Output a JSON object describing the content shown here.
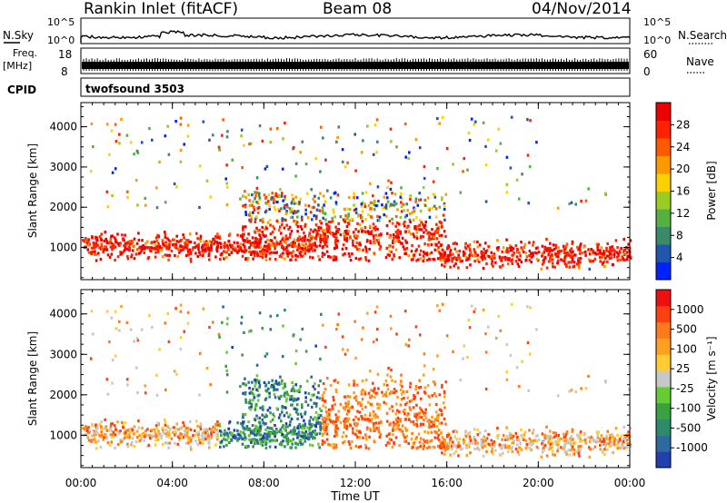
{
  "header": {
    "station": "Rankin Inlet (fitACF)",
    "beam": "Beam 08",
    "date": "04/Nov/2014"
  },
  "summary": {
    "nsky_label": "N.Sky",
    "nsky_ticks": [
      "10^5",
      "10^0"
    ],
    "nsearch_label": "N.Search",
    "nsearch_ticks": [
      "10^5",
      "10^0"
    ],
    "freq_label": "Freq.",
    "freq_unit": "[MHz]",
    "freq_ticks": [
      "18",
      "8"
    ],
    "nave_label": "Nave",
    "nave_ticks": [
      "60",
      "0"
    ],
    "cpid_label": "CPID",
    "cpid_value": "twofsound 3503"
  },
  "chart_data": [
    {
      "type": "heatmap",
      "panel": "power",
      "ylabel": "Slant Range [km]",
      "ylim": [
        200,
        4600
      ],
      "yticks": [
        "1000",
        "2000",
        "3000",
        "4000"
      ],
      "ytick_values": [
        1000,
        2000,
        3000,
        4000
      ],
      "xlim": [
        0,
        24
      ],
      "colorbar": {
        "label": "Power [dB]",
        "tick_labels": [
          "28",
          "24",
          "20",
          "16",
          "12",
          "8",
          "4"
        ],
        "colors": [
          "#0022ff",
          "#2255b0",
          "#3a8a6a",
          "#55b040",
          "#99cc22",
          "#ffd000",
          "#ff9900",
          "#ff5a00",
          "#ff2200",
          "#ee0000"
        ]
      },
      "notes": "Main F-region echoes ~600-1600 km (red, 28-30 dB) 00-10 UT and 15:30-24 UT; scattered weaker echoes up to ~3000 km between 07 and 16 UT."
    },
    {
      "type": "heatmap",
      "panel": "velocity",
      "ylabel": "Slant Range [km]",
      "ylim": [
        200,
        4600
      ],
      "yticks": [
        "1000",
        "2000",
        "3000",
        "4000"
      ],
      "ytick_values": [
        1000,
        2000,
        3000,
        4000
      ],
      "xlim": [
        0,
        24
      ],
      "colorbar": {
        "label": "Velocity [m s⁻¹]",
        "tick_labels": [
          "1000",
          "500",
          "100",
          "25",
          "-25",
          "-100",
          "-500",
          "-1000"
        ],
        "colors": [
          "#2040b0",
          "#2e6aa0",
          "#2e8a6a",
          "#3aa040",
          "#66cc33",
          "#c8c8c8",
          "#ffcc33",
          "#ffa020",
          "#ff7a1a",
          "#ff4010",
          "#ee1010"
        ]
      },
      "notes": "Early hours mixed orange (away) and gray; 06-10 UT blue/green (toward); 11-16 UT strong orange-red bands 1200-2300 km; after 16 UT mostly orange with gray."
    }
  ],
  "x_axis": {
    "label": "Time UT",
    "ticks": [
      "00:00",
      "04:00",
      "08:00",
      "12:00",
      "16:00",
      "20:00",
      "00:00"
    ],
    "tick_hours": [
      0,
      4,
      8,
      12,
      16,
      20,
      24
    ]
  }
}
